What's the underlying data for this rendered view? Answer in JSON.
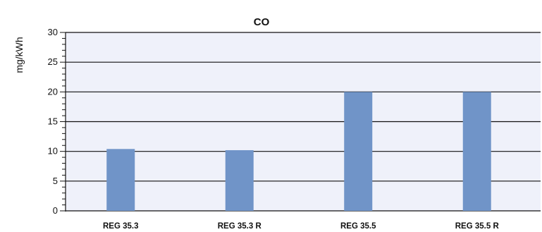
{
  "chart_data": {
    "type": "bar",
    "title": "CO",
    "xlabel": "",
    "ylabel": "mg/kWh",
    "categories": [
      "REG 35.3",
      "REG 35.3 R",
      "REG 35.5",
      "REG 35.5 R"
    ],
    "values": [
      10.4,
      10.2,
      20.0,
      20.0
    ],
    "ylim": [
      0,
      30
    ],
    "yticks": [
      0,
      5,
      10,
      15,
      20,
      25,
      30
    ],
    "grid": true,
    "colors": {
      "bar": "#7094c8",
      "plot_background": "#eff1fa",
      "grid": "#111111"
    }
  }
}
